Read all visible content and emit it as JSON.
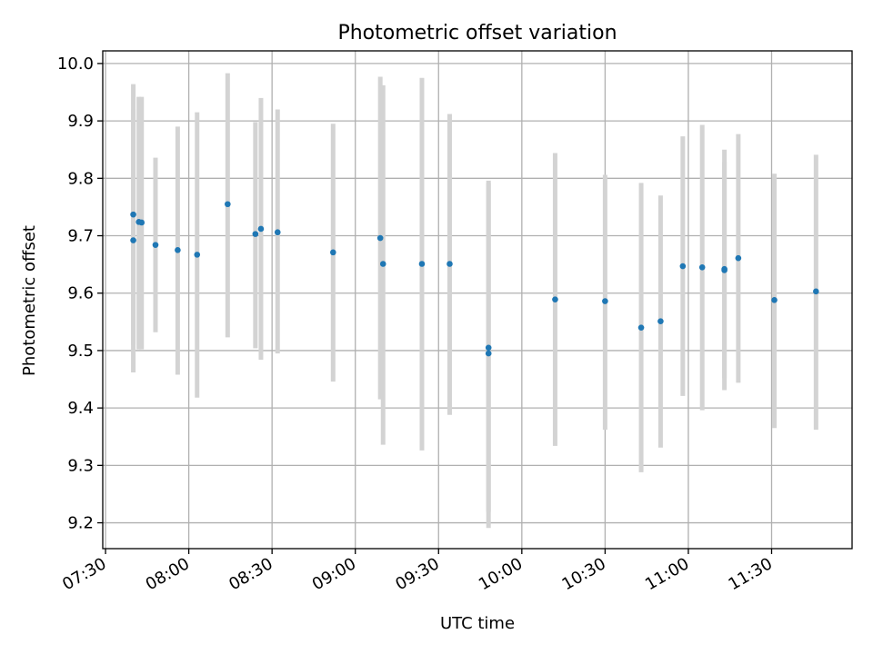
{
  "chart_data": {
    "type": "scatter",
    "title": "Photometric offset variation",
    "xlabel": "UTC time",
    "ylabel": "Photometric offset",
    "grid": true,
    "xlim": [
      "07:29",
      "11:59"
    ],
    "ylim": [
      9.155,
      10.022
    ],
    "x_ticks": [
      "07:30",
      "08:00",
      "08:30",
      "09:00",
      "09:30",
      "10:00",
      "10:30",
      "11:00",
      "11:30"
    ],
    "y_ticks": [
      "9.2",
      "9.3",
      "9.4",
      "9.5",
      "9.6",
      "9.7",
      "9.8",
      "9.9",
      "10.0"
    ],
    "colors": {
      "points": "#1f77b4",
      "error_bars": "#d3d3d3",
      "grid": "#b0b0b0"
    },
    "series": [
      {
        "x": [
          "07:40",
          "07:40",
          "07:42",
          "07:43",
          "07:48",
          "07:56",
          "08:03",
          "08:14",
          "08:24",
          "08:26",
          "08:32",
          "08:52",
          "09:09",
          "09:10",
          "09:24",
          "09:34",
          "09:48",
          "09:48",
          "10:12",
          "10:30",
          "10:43",
          "10:50",
          "10:58",
          "11:05",
          "11:13",
          "11:13",
          "11:18",
          "11:31",
          "11:46"
        ],
        "y": [
          9.737,
          9.692,
          9.724,
          9.723,
          9.684,
          9.675,
          9.667,
          9.755,
          9.703,
          9.712,
          9.706,
          9.671,
          9.696,
          9.651,
          9.651,
          9.651,
          9.505,
          9.495,
          9.589,
          9.586,
          9.54,
          9.551,
          9.647,
          9.645,
          9.642,
          9.64,
          9.661,
          9.588,
          9.603
        ],
        "err_low": [
          9.51,
          9.462,
          9.502,
          9.502,
          9.532,
          9.458,
          9.418,
          9.523,
          9.504,
          9.484,
          9.495,
          9.446,
          9.415,
          9.336,
          9.326,
          9.388,
          9.219,
          9.191,
          9.334,
          9.362,
          9.288,
          9.331,
          9.421,
          9.396,
          9.431,
          9.452,
          9.444,
          9.365,
          9.362
        ],
        "err_high": [
          9.964,
          9.92,
          9.942,
          9.942,
          9.836,
          9.89,
          9.915,
          9.983,
          9.898,
          9.94,
          9.92,
          9.895,
          9.977,
          9.962,
          9.975,
          9.912,
          9.792,
          9.796,
          9.844,
          9.806,
          9.792,
          9.77,
          9.873,
          9.893,
          9.85,
          9.828,
          9.877,
          9.808,
          9.841
        ]
      }
    ]
  }
}
